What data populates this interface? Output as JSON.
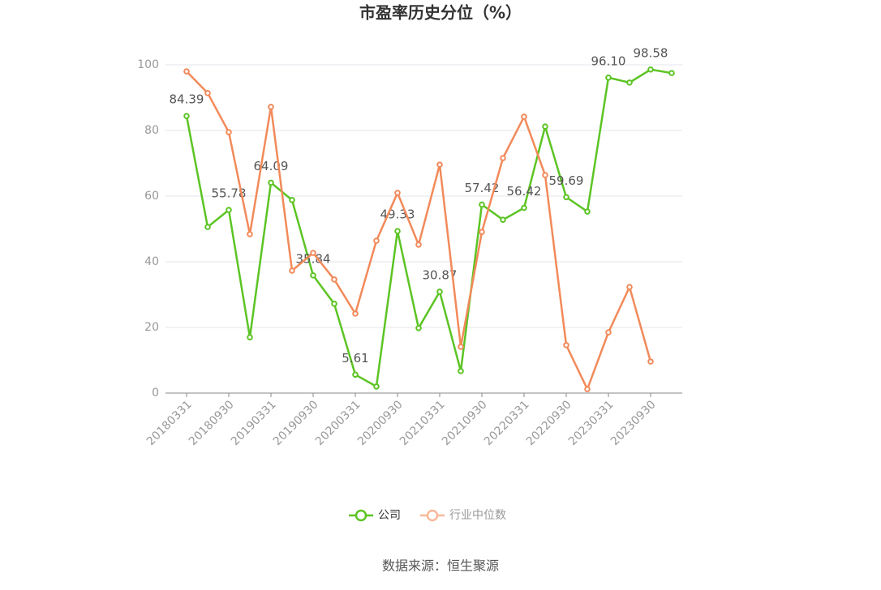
{
  "chart_data": {
    "type": "line",
    "title": "市盈率历史分位（%）",
    "categories": [
      "20180331",
      null,
      "20180930",
      null,
      "20190331",
      null,
      "20190930",
      null,
      "20200331",
      null,
      "20200930",
      null,
      "20210331",
      null,
      "20210930",
      null,
      "20220331",
      null,
      "20220930",
      null,
      "20230331",
      null,
      "20230930",
      null
    ],
    "series": [
      {
        "name": "公司",
        "color": "#5cc424",
        "values": [
          84.39,
          50.6,
          55.78,
          17.0,
          64.09,
          58.8,
          35.84,
          27.2,
          5.61,
          2.0,
          49.33,
          19.8,
          30.87,
          6.7,
          57.42,
          52.8,
          56.42,
          81.2,
          59.69,
          55.3,
          96.1,
          94.6,
          98.58,
          97.5
        ],
        "value_labels": [
          "84.39",
          null,
          "55.78",
          null,
          "64.09",
          null,
          "35.84",
          null,
          "5.61",
          null,
          "49.33",
          null,
          "30.87",
          null,
          "57.42",
          null,
          "56.42",
          null,
          "59.69",
          null,
          "96.10",
          null,
          "98.58",
          null
        ]
      },
      {
        "name": "行业中位数",
        "color": "#f28a5a",
        "values": [
          98.0,
          91.4,
          79.5,
          48.4,
          87.2,
          37.3,
          42.7,
          34.6,
          24.2,
          46.4,
          61.0,
          45.2,
          69.6,
          14.1,
          49.1,
          71.6,
          84.2,
          66.4,
          14.6,
          1.2,
          18.5,
          32.3,
          9.6,
          null
        ]
      }
    ],
    "ylim": [
      0,
      100
    ],
    "yticks": [
      0,
      20,
      40,
      60,
      80,
      100
    ],
    "grid": true,
    "legend": "bottom",
    "source": "数据来源：恒生聚源"
  }
}
